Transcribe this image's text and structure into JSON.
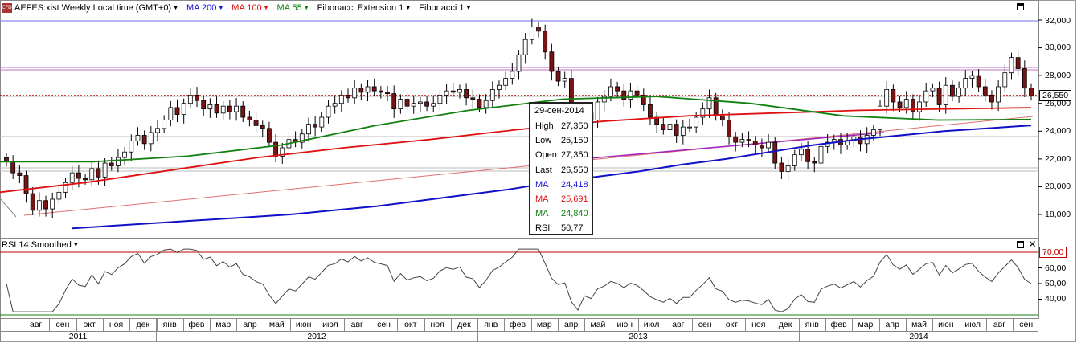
{
  "header": {
    "logo_text": "CFD",
    "instrument": "AEFES:xist Weekly Local time (GMT+0)",
    "indicators": [
      {
        "label": "MA 200",
        "color": "#1010d0"
      },
      {
        "label": "MA 100",
        "color": "#e01010"
      },
      {
        "label": "MA 55",
        "color": "#108010"
      },
      {
        "label": "Fibonacci Extension 1",
        "color": "#000000"
      },
      {
        "label": "Fibonacci 1",
        "color": "#000000"
      }
    ]
  },
  "rsi_panel": {
    "title": "RSI 14 Smoothed",
    "y_labels": [
      "70,00",
      "60,00",
      "50,00",
      "40,00"
    ],
    "overbought": 70,
    "oversold": 30
  },
  "price_axis": {
    "labels": [
      "32,000",
      "30,000",
      "28,000",
      "26,000",
      "24,000",
      "22,000",
      "20,000",
      "18,000"
    ],
    "last_price_tag": "26,550"
  },
  "tooltip": {
    "date": "29-сен-2014",
    "rows": [
      {
        "key": "High",
        "value": "27,350",
        "color": "#000000"
      },
      {
        "key": "Low",
        "value": "25,150",
        "color": "#000000"
      },
      {
        "key": "Open",
        "value": "27,350",
        "color": "#000000"
      },
      {
        "key": "Last",
        "value": "26,550",
        "color": "#000000"
      },
      {
        "key": "MA",
        "value": "24,418",
        "color": "#1010d0"
      },
      {
        "key": "MA",
        "value": "25,691",
        "color": "#e01010"
      },
      {
        "key": "MA",
        "value": "24,840",
        "color": "#108010"
      },
      {
        "key": "RSI",
        "value": "50,77",
        "color": "#000000"
      }
    ]
  },
  "x_axis": {
    "months": [
      "авг",
      "сен",
      "окт",
      "ноя",
      "дек",
      "янв",
      "фев",
      "мар",
      "апр",
      "май",
      "июн",
      "июл",
      "авг",
      "сен",
      "окт",
      "ноя",
      "дек",
      "янв",
      "фев",
      "мар",
      "апр",
      "май",
      "июн",
      "июл",
      "авг",
      "сен",
      "окт",
      "ноя",
      "дек",
      "янв",
      "фев",
      "мар",
      "апр",
      "май",
      "июн",
      "июл",
      "авг",
      "сен"
    ],
    "years": [
      "2011",
      "2012",
      "2013",
      "2014"
    ]
  },
  "chart_data": {
    "type": "candlestick",
    "timeframe": "weekly",
    "y_range": [
      16000,
      32500
    ],
    "closes": [
      21800,
      21000,
      20800,
      19500,
      18300,
      19000,
      18400,
      19100,
      19600,
      20300,
      21000,
      20600,
      20500,
      21300,
      20700,
      21700,
      21500,
      22100,
      22500,
      23300,
      23700,
      23100,
      23900,
      24200,
      24800,
      25700,
      25200,
      26000,
      26600,
      26200,
      25600,
      25900,
      25300,
      25800,
      25400,
      25800,
      25000,
      24800,
      24400,
      24200,
      23200,
      22200,
      22800,
      23400,
      23200,
      23800,
      24500,
      24300,
      25000,
      25800,
      26000,
      26600,
      26400,
      27100,
      26800,
      27200,
      26900,
      26800,
      26700,
      25600,
      26300,
      25800,
      26000,
      26100,
      25800,
      26000,
      26600,
      26900,
      26800,
      27000,
      26400,
      26300,
      25700,
      26200,
      27000,
      27300,
      27800,
      28300,
      29500,
      30600,
      31500,
      31200,
      29700,
      28300,
      27600,
      27800,
      25200,
      23600,
      25300,
      24800,
      26100,
      26500,
      27200,
      26900,
      26300,
      26900,
      26600,
      25900,
      25000,
      24500,
      24100,
      24500,
      23700,
      24300,
      24300,
      25000,
      25600,
      26400,
      25100,
      24800,
      23600,
      23200,
      23400,
      23300,
      23000,
      22800,
      23200,
      21700,
      21100,
      21500,
      22300,
      22700,
      21800,
      21700,
      22900,
      23200,
      23400,
      23000,
      23300,
      23600,
      23100,
      23700,
      24100,
      25800,
      27000,
      26100,
      25700,
      26300,
      25400,
      26100,
      26900,
      27100,
      25900,
      27300,
      26500,
      27100,
      27800,
      28000,
      27200,
      26600,
      26100,
      27200,
      28200,
      29300,
      28500,
      27100,
      26550
    ],
    "ma200": [
      17000,
      17200,
      17400,
      17600,
      17800,
      18000,
      18300,
      18600,
      19000,
      19400,
      19800,
      20300,
      20700,
      21100,
      21600,
      22000,
      22500,
      23000,
      23400,
      23700,
      24000,
      24200,
      24418
    ],
    "ma100": [
      19600,
      20300,
      21200,
      22100,
      22800,
      23400,
      24100,
      24700,
      25100,
      25300,
      25500,
      25600,
      25691
    ],
    "ma55": [
      21800,
      21800,
      22200,
      23000,
      24400,
      25500,
      26300,
      26500,
      26000,
      25100,
      24800,
      24840
    ]
  }
}
